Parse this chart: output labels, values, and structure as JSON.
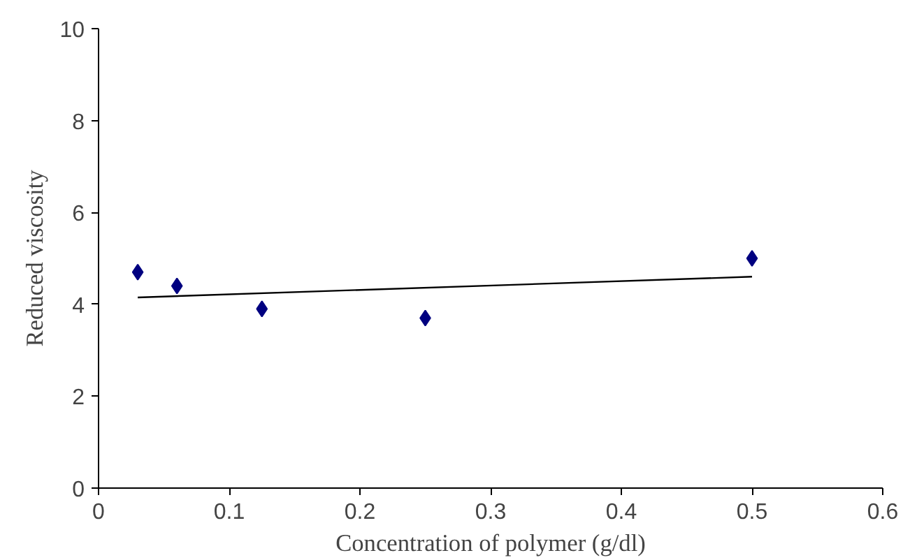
{
  "chart_data": {
    "type": "scatter",
    "xlabel": "Concentration of polymer (g/dl)",
    "ylabel": "Reduced viscosity",
    "xlim": [
      0,
      0.6
    ],
    "ylim": [
      0,
      10
    ],
    "xticks": [
      0,
      0.1,
      0.2,
      0.3,
      0.4,
      0.5,
      0.6
    ],
    "yticks": [
      0,
      2,
      4,
      6,
      8,
      10
    ],
    "grid": false,
    "marker": "diamond",
    "series": [
      {
        "color": "#000080",
        "x": [
          0.03,
          0.06,
          0.125,
          0.25,
          0.5
        ],
        "values": [
          4.7,
          4.4,
          3.9,
          3.7,
          5.0
        ]
      },
      {
        "type": "line",
        "color": "#000000",
        "marker": "none",
        "line_style": "solid",
        "x": [
          0.03,
          0.5
        ],
        "values": [
          4.15,
          4.6
        ]
      }
    ]
  }
}
